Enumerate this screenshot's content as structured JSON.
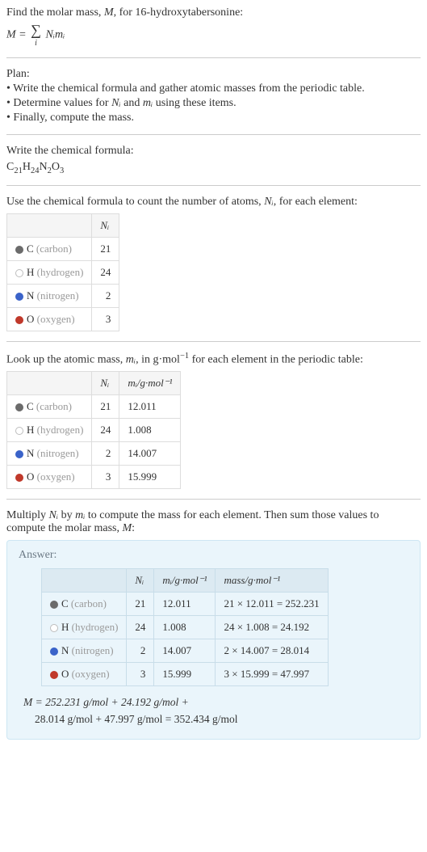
{
  "intro": {
    "line1_prefix": "Find the molar mass, ",
    "line1_M": "M",
    "line1_suffix": ", for 16-hydroxytabersonine:",
    "formula_lhs": "M = ",
    "formula_sigma_under": "i",
    "formula_rhs": " Nᵢmᵢ"
  },
  "plan": {
    "heading": "Plan:",
    "b1": "• Write the chemical formula and gather atomic masses from the periodic table.",
    "b2_prefix": "• Determine values for ",
    "b2_ni": "Nᵢ",
    "b2_mid": " and ",
    "b2_mi": "mᵢ",
    "b2_suffix": " using these items.",
    "b3": "• Finally, compute the mass."
  },
  "chem": {
    "heading": "Write the chemical formula:",
    "formula_parts": [
      "C",
      "21",
      "H",
      "24",
      "N",
      "2",
      "O",
      "3"
    ]
  },
  "count": {
    "heading_prefix": "Use the chemical formula to count the number of atoms, ",
    "heading_ni": "Nᵢ",
    "heading_suffix": ", for each element:",
    "header_ni": "Nᵢ"
  },
  "masslookup": {
    "heading_prefix": "Look up the atomic mass, ",
    "heading_mi": "mᵢ",
    "heading_mid": ", in g·mol",
    "heading_exp": "−1",
    "heading_suffix": " for each element in the periodic table:",
    "header_ni": "Nᵢ",
    "header_mi": "mᵢ/g·mol⁻¹"
  },
  "multiply": {
    "heading_prefix": "Multiply ",
    "heading_ni": "Nᵢ",
    "heading_mid": " by ",
    "heading_mi": "mᵢ",
    "heading_suffix": " to compute the mass for each element. Then sum those values to compute the molar mass, ",
    "heading_M": "M",
    "heading_colon": ":"
  },
  "answer": {
    "label": "Answer:",
    "header_ni": "Nᵢ",
    "header_mi": "mᵢ/g·mol⁻¹",
    "header_mass": "mass/g·mol⁻¹",
    "final_line1": "M = 252.231 g/mol + 24.192 g/mol +",
    "final_line2": "28.014 g/mol + 47.997 g/mol = 352.434 g/mol"
  },
  "elements": [
    {
      "sym": "C",
      "name": "(carbon)",
      "n": "21",
      "m": "12.011",
      "mass": "21 × 12.011 = 252.231",
      "dot_fill": "#6b6b6b",
      "dot_border": "#6b6b6b"
    },
    {
      "sym": "H",
      "name": "(hydrogen)",
      "n": "24",
      "m": "1.008",
      "mass": "24 × 1.008 = 24.192",
      "dot_fill": "#ffffff",
      "dot_border": "#bdbdbd"
    },
    {
      "sym": "N",
      "name": "(nitrogen)",
      "n": "2",
      "m": "14.007",
      "mass": "2 × 14.007 = 28.014",
      "dot_fill": "#3a63c9",
      "dot_border": "#3a63c9"
    },
    {
      "sym": "O",
      "name": "(oxygen)",
      "n": "3",
      "m": "15.999",
      "mass": "3 × 15.999 = 47.997",
      "dot_fill": "#c0392b",
      "dot_border": "#c0392b"
    }
  ],
  "colors": {
    "row_label_gray": "#9a9a9a"
  }
}
